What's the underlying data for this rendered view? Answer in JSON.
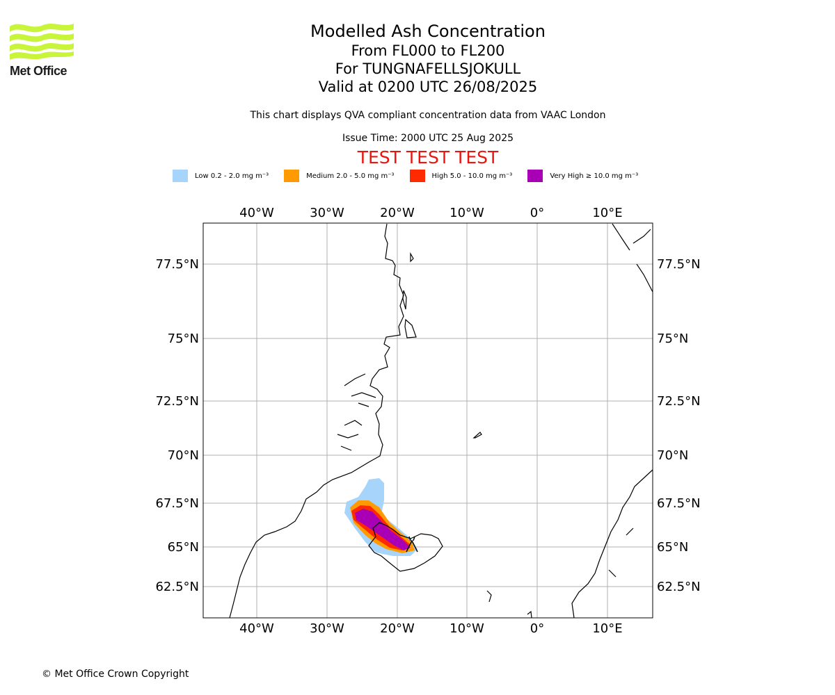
{
  "logo": {
    "text": "Met Office"
  },
  "title": {
    "line1": "Modelled Ash Concentration",
    "line2": "From FL000 to FL200",
    "line3": "For TUNGNAFELLSJOKULL",
    "line4": "Valid at 0200 UTC 26/08/2025"
  },
  "subtitle": "This chart displays QVA compliant concentration data from VAAC London",
  "issue_time": "Issue Time: 2000 UTC 25 Aug 2025",
  "test_banner": "TEST TEST TEST",
  "legend": [
    {
      "label": "Low 0.2 - 2.0 mg m⁻³",
      "color": "#a6d4fa"
    },
    {
      "label": "Medium 2.0 - 5.0 mg m⁻³",
      "color": "#ff9a00"
    },
    {
      "label": "High 5.0 - 10.0 mg m⁻³",
      "color": "#ff2a00"
    },
    {
      "label": "Very High  ≥  10.0 mg m⁻³",
      "color": "#a900b5"
    }
  ],
  "axes": {
    "lon_labels": [
      "40°W",
      "30°W",
      "20°W",
      "10°W",
      "0°",
      "10°E"
    ],
    "lat_labels": [
      "77.5°N",
      "75°N",
      "72.5°N",
      "70°N",
      "67.5°N",
      "65°N",
      "62.5°N"
    ]
  },
  "copyright": "© Met Office Crown Copyright"
}
